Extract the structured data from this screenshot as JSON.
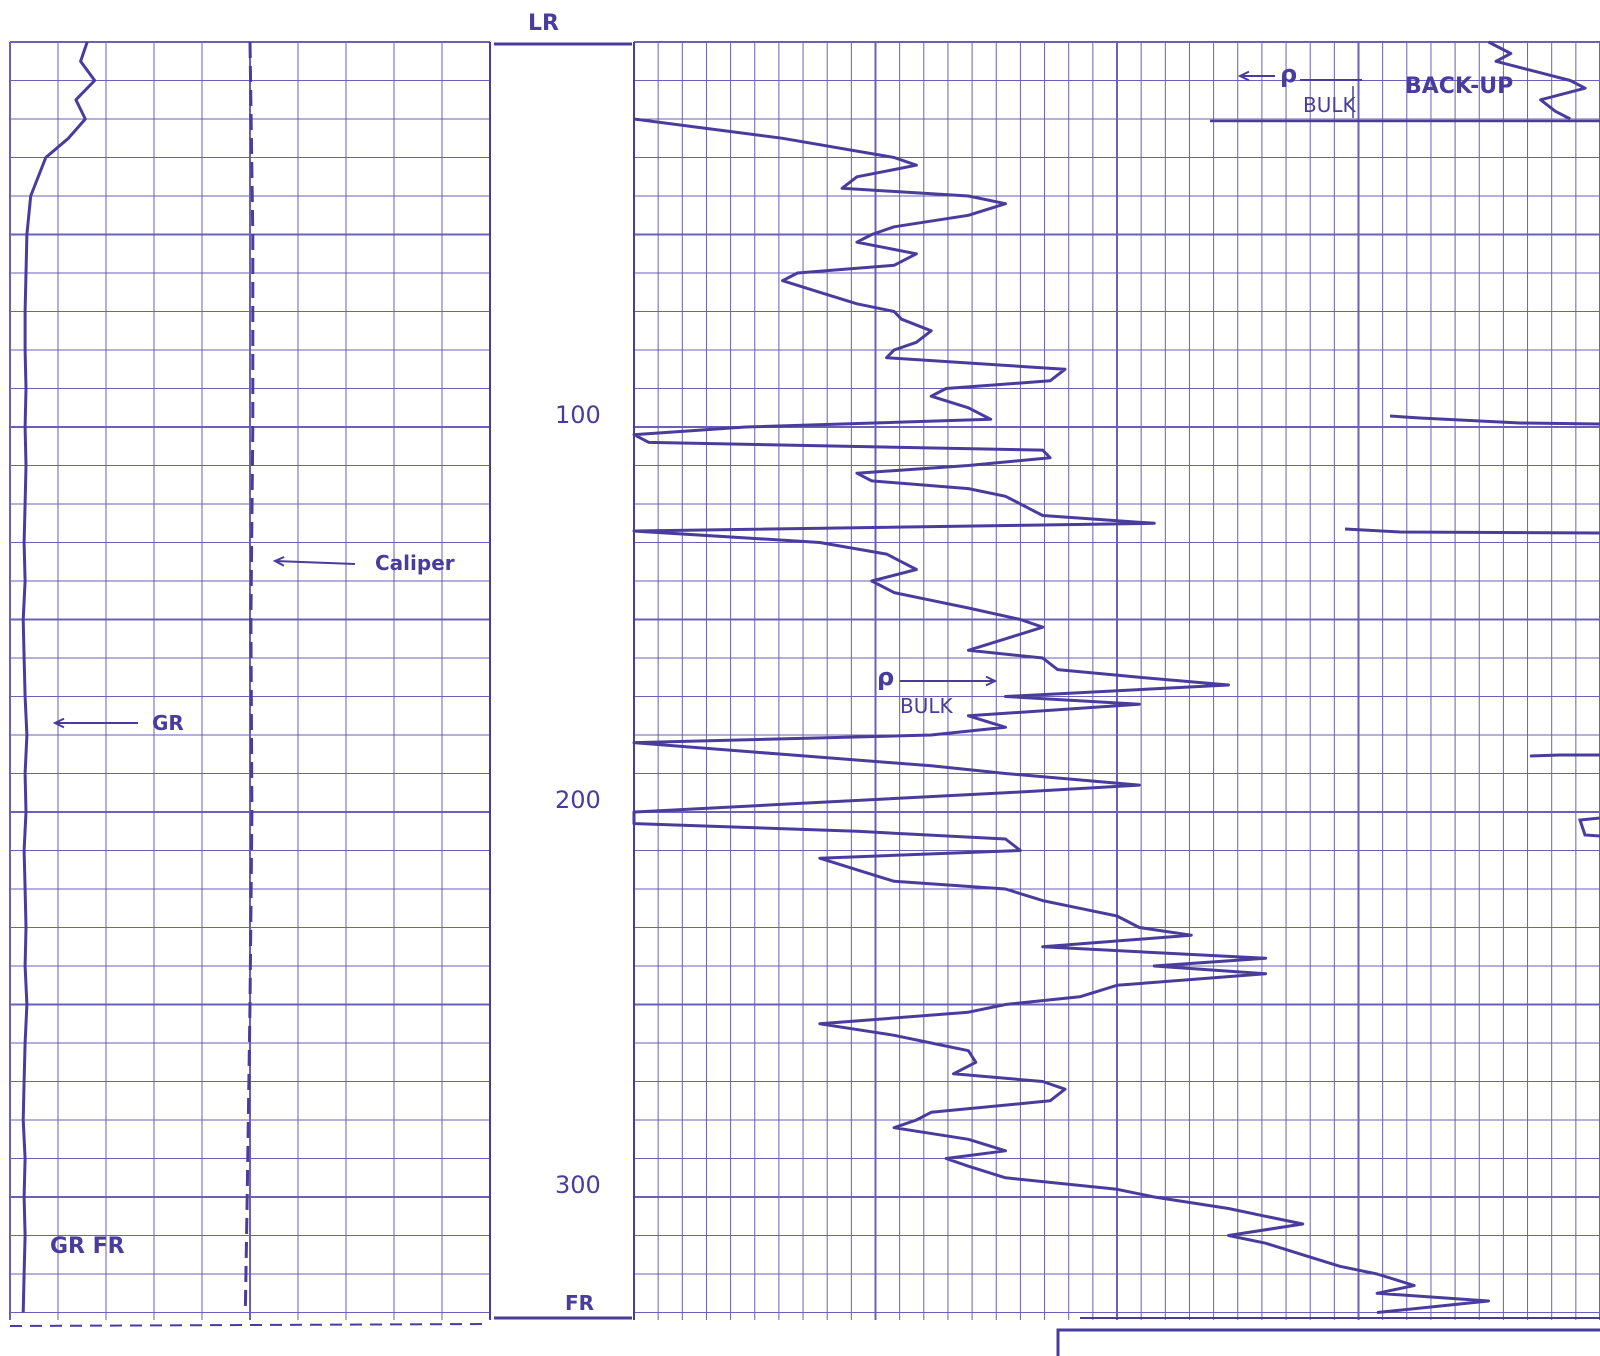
{
  "chart_data": [
    {
      "type": "line",
      "track": "left",
      "title": "",
      "series": [
        {
          "name": "GR",
          "depth": [
            0,
            5,
            10,
            15,
            20,
            25,
            30,
            40,
            50,
            60,
            70,
            80,
            90,
            100,
            110,
            120,
            130,
            140,
            150,
            160,
            170,
            180,
            190,
            200,
            210,
            220,
            230,
            240,
            250,
            260,
            270,
            280,
            290,
            300,
            310,
            320,
            330
          ],
          "values": [
            82,
            75,
            90,
            70,
            80,
            62,
            38,
            22,
            18,
            17,
            16,
            16,
            17,
            16,
            17,
            16,
            15,
            16,
            14,
            15,
            16,
            18,
            16,
            17,
            15,
            16,
            17,
            16,
            18,
            16,
            15,
            14,
            16,
            15,
            16,
            15,
            14
          ]
        },
        {
          "name": "Caliper",
          "depth": [
            0,
            50,
            100,
            150,
            200,
            250,
            300,
            330
          ],
          "values": [
            255,
            258,
            258,
            256,
            257,
            255,
            252,
            250
          ]
        }
      ],
      "annotations": [
        {
          "text": "Caliper",
          "depth": 137
        },
        {
          "text": "GR",
          "depth": 178
        },
        {
          "text": "GR FR",
          "depth": 315
        }
      ]
    },
    {
      "type": "line",
      "track": "right",
      "title": "",
      "series": [
        {
          "name": "ρ BULK",
          "depth": [
            20,
            22,
            25,
            30,
            32,
            35,
            38,
            40,
            42,
            45,
            48,
            50,
            52,
            55,
            58,
            60,
            62,
            65,
            68,
            70,
            72,
            75,
            78,
            80,
            82,
            85,
            88,
            90,
            92,
            95,
            98,
            100,
            102,
            104,
            106,
            108,
            110,
            112,
            114,
            116,
            118,
            120,
            123,
            125,
            127,
            130,
            133,
            135,
            137,
            140,
            143,
            145,
            147,
            150,
            152,
            155,
            158,
            160,
            163,
            165,
            167,
            170,
            172,
            175,
            178,
            180,
            182,
            185,
            188,
            190,
            193,
            195,
            198,
            200,
            203,
            205,
            207,
            210,
            212,
            215,
            218,
            220,
            223,
            225,
            227,
            230,
            232,
            235,
            238,
            240,
            242,
            245,
            248,
            250,
            252,
            255,
            258,
            260,
            262,
            265,
            268,
            270,
            272,
            275,
            278,
            280,
            282,
            285,
            288,
            290,
            292,
            295,
            298,
            300,
            303,
            305,
            307,
            310,
            312,
            315,
            318,
            320,
            323,
            325,
            327,
            330
          ],
          "values": [
            0.0,
            0.8,
            2.0,
            3.5,
            3.8,
            3.0,
            2.8,
            4.5,
            5.0,
            4.5,
            3.5,
            3.2,
            3.0,
            3.8,
            3.5,
            2.2,
            2.0,
            2.5,
            3.0,
            3.5,
            3.6,
            4.0,
            3.8,
            3.5,
            3.4,
            5.8,
            5.6,
            4.2,
            4.0,
            4.5,
            4.8,
            1.5,
            0.0,
            0.2,
            5.5,
            5.6,
            4.5,
            3.0,
            3.2,
            4.5,
            5.0,
            5.2,
            5.5,
            7.0,
            0.0,
            2.5,
            3.4,
            3.6,
            3.8,
            3.2,
            3.5,
            4.0,
            4.5,
            5.2,
            5.5,
            5.0,
            4.5,
            5.5,
            5.7,
            6.8,
            8.0,
            5.0,
            6.8,
            4.5,
            5.0,
            4.0,
            0.0,
            2.0,
            4.0,
            5.0,
            6.8,
            5.0,
            2.0,
            0.0,
            0.0,
            3.0,
            5.0,
            5.2,
            2.5,
            3.0,
            3.5,
            5.0,
            5.5,
            6.0,
            6.5,
            6.8,
            7.5,
            5.5,
            8.5,
            7.0,
            8.5,
            6.5,
            6.0,
            5.0,
            4.5,
            2.5,
            3.5,
            4.0,
            4.5,
            4.6,
            4.3,
            5.5,
            5.8,
            5.6,
            4.0,
            3.8,
            3.5,
            4.5,
            5.0,
            4.2,
            4.5,
            5.0,
            6.5,
            7.0,
            8.0,
            8.5,
            9.0,
            8.0,
            8.5,
            9.0,
            9.5,
            10.0,
            10.5,
            10.0,
            11.5,
            10.0
          ]
        },
        {
          "name": "ρ BULK BACK-UP",
          "depth": [
            0,
            3,
            5,
            8,
            10,
            12,
            15,
            18,
            20
          ],
          "values": [
            11.5,
            11.8,
            11.6,
            12.2,
            12.6,
            12.8,
            12.2,
            12.4,
            12.6
          ]
        }
      ],
      "annotations": [
        {
          "text": "BACK-UP",
          "depth": 12
        },
        {
          "text": "BULK",
          "depth": 16
        },
        {
          "text": "BULK",
          "depth": 175
        }
      ]
    }
  ],
  "depth_scale": {
    "top_label": "LR",
    "bottom_label": "FR",
    "ticks": [
      "100",
      "200",
      "300"
    ],
    "unit": ""
  },
  "labels": {
    "caliper": "Caliper",
    "gr": "GR",
    "gr_fr": "GR FR",
    "backup": "BACK-UP",
    "bulk_top": "BULK",
    "bulk_mid": "BULK",
    "rho_top": "ρ",
    "rho_mid": "ρ"
  },
  "colors": {
    "ink": "#4a3c9c",
    "grid": "#6b5fb8",
    "paper": "#ffffff"
  }
}
